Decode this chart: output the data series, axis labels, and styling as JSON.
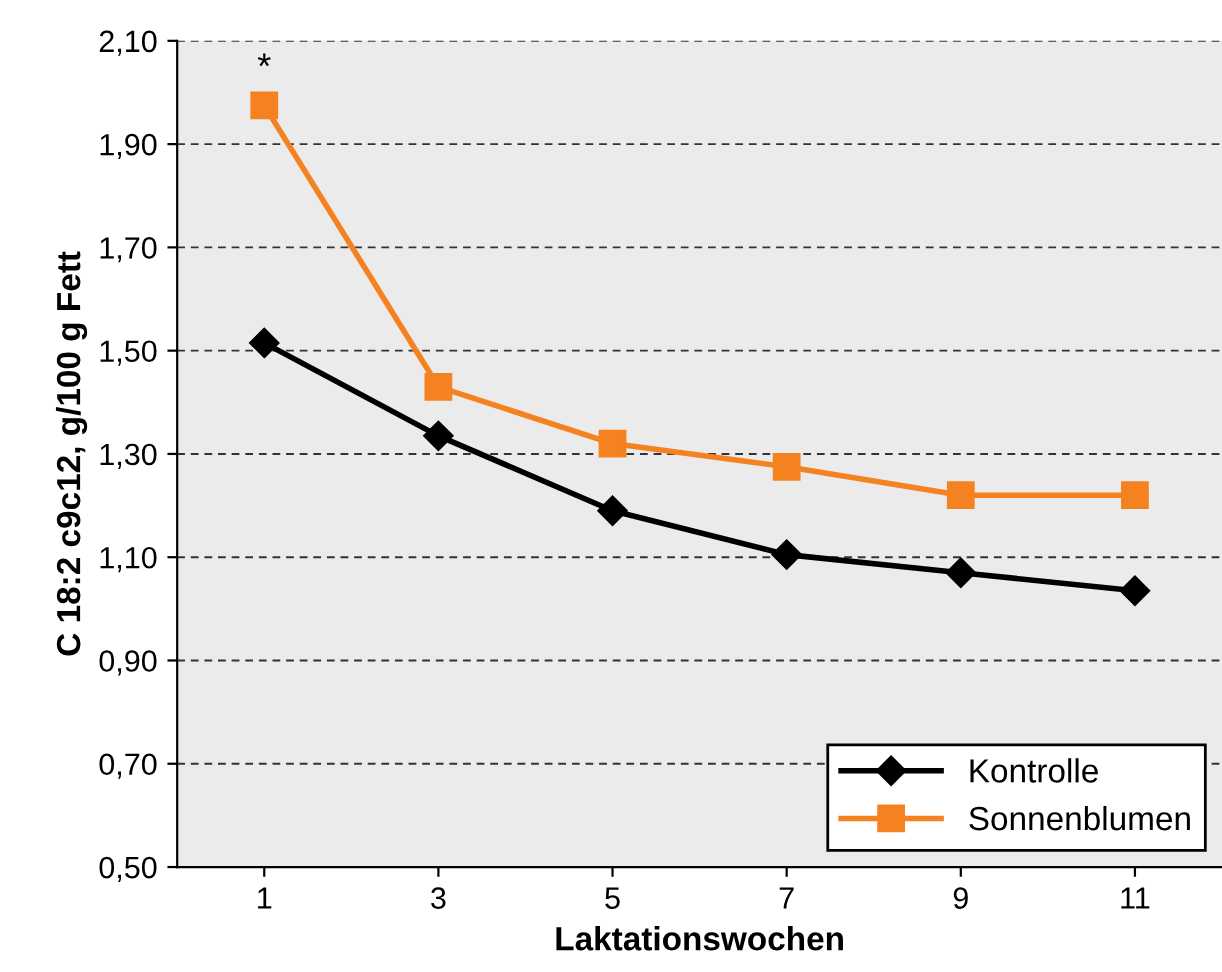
{
  "chart_data": {
    "type": "line",
    "xlabel": "Laktationswochen",
    "ylabel": "C 18:2 c9c12, g/100 g Fett",
    "x": [
      1,
      3,
      5,
      7,
      9,
      11
    ],
    "series": [
      {
        "name": "Kontrolle",
        "color": "#000000",
        "marker": "diamond",
        "values": [
          1.515,
          1.335,
          1.19,
          1.105,
          1.07,
          1.035
        ]
      },
      {
        "name": "Sonnenblumen",
        "color": "#f58220",
        "marker": "square",
        "values": [
          1.975,
          1.43,
          1.32,
          1.275,
          1.22,
          1.22
        ]
      }
    ],
    "xlim": [
      0,
      12
    ],
    "xticks": [
      1,
      3,
      5,
      7,
      9,
      11
    ],
    "ylim": [
      0.5,
      2.1
    ],
    "yticks": [
      {
        "value": 0.5,
        "label": "0,50"
      },
      {
        "value": 0.7,
        "label": "0,70"
      },
      {
        "value": 0.9,
        "label": "0,90"
      },
      {
        "value": 1.1,
        "label": "1,10"
      },
      {
        "value": 1.3,
        "label": "1,30"
      },
      {
        "value": 1.5,
        "label": "1,50"
      },
      {
        "value": 1.7,
        "label": "1,70"
      },
      {
        "value": 1.9,
        "label": "1,90"
      },
      {
        "value": 2.1,
        "label": "2,10"
      }
    ],
    "grid": "y",
    "legend": "bottom right",
    "line_style": "solid",
    "annotations": [
      {
        "text": "*",
        "x": 1,
        "y": 1.975
      }
    ]
  }
}
